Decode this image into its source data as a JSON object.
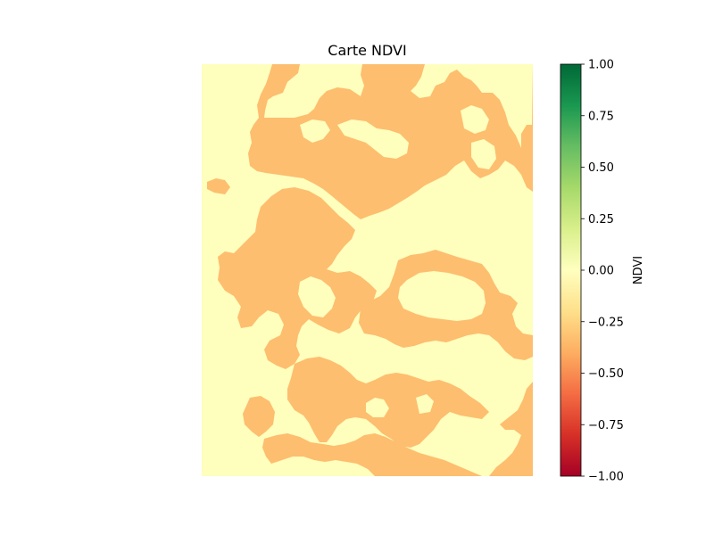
{
  "chart_data": {
    "type": "heatmap",
    "title": "Carte NDVI",
    "xlabel": "",
    "ylabel": "",
    "axes_visible": false,
    "map_classes": [
      {
        "ndvi_value": 0.0,
        "color": "#fefebd"
      },
      {
        "ndvi_value": -0.3,
        "color": "#fdbe6f"
      }
    ],
    "colorbar": {
      "label": "NDVI",
      "cmap": "RdYlGn",
      "range": [
        -1.0,
        1.0
      ],
      "ticks": [
        "1.00",
        "0.75",
        "0.50",
        "0.25",
        "0.00",
        "−0.25",
        "−0.50",
        "−0.75",
        "−1.00"
      ],
      "tick_values": [
        1.0,
        0.75,
        0.5,
        0.25,
        0.0,
        -0.25,
        -0.5,
        -0.75,
        -1.0
      ],
      "stops": [
        "#006837",
        "#1a9850",
        "#66bd63",
        "#a6d96a",
        "#d9ef8b",
        "#ffffbf",
        "#fee08b",
        "#fdae61",
        "#f46d43",
        "#d73027",
        "#a50026"
      ]
    }
  }
}
